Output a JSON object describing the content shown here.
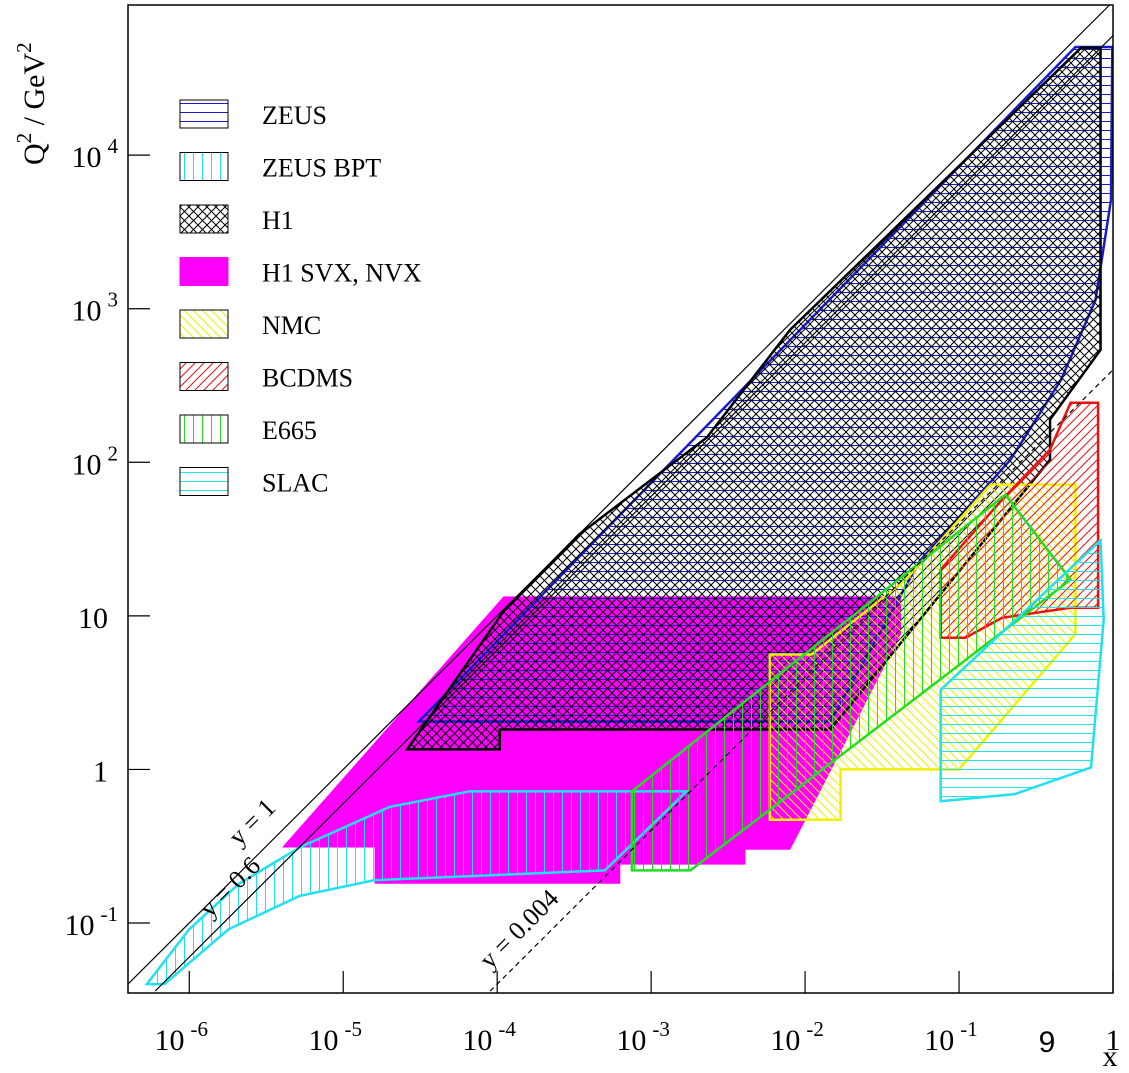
{
  "chart_data": {
    "type": "region",
    "xlabel": "x",
    "ylabel_parts": [
      "Q",
      "2",
      " / GeV",
      "2"
    ],
    "xlim": [
      4e-07,
      1
    ],
    "ylim": [
      0.035,
      95000
    ],
    "log_x": true,
    "log_y": true,
    "xticks": [
      {
        "value": 1e-06,
        "label": "10",
        "exponent": "-6"
      },
      {
        "value": 1e-05,
        "label": "10",
        "exponent": "-5"
      },
      {
        "value": 0.0001,
        "label": "10",
        "exponent": "-4"
      },
      {
        "value": 0.001,
        "label": "10",
        "exponent": "-3"
      },
      {
        "value": 0.01,
        "label": "10",
        "exponent": "-2"
      },
      {
        "value": 0.1,
        "label": "10",
        "exponent": "-1"
      },
      1
    ],
    "yticks": [
      {
        "value": 0.1,
        "label": "10",
        "exponent": "-1"
      },
      1,
      10,
      {
        "value": 100,
        "label": "10",
        "exponent": "2"
      },
      {
        "value": 1000,
        "label": "10",
        "exponent": "3"
      },
      {
        "value": 10000,
        "label": "10",
        "exponent": "4"
      }
    ],
    "annotation": "9",
    "series": [
      {
        "name": "ZEUS",
        "color": "#1a1acc",
        "pattern": "hlines",
        "x": [
          3.1e-05,
          0.57,
          0.99,
          0.97,
          0.77,
          0.46,
          0.216,
          0.056,
          0.0146
        ],
        "values": [
          2.05,
          50600,
          50600,
          5100,
          1140,
          345,
          104,
          23,
          2.05
        ]
      },
      {
        "name": "ZEUS BPT",
        "color": "#22e0ee",
        "pattern": "vlines",
        "x": [
          5.3e-07,
          1e-06,
          2.1e-06,
          5.2e-06,
          2e-05,
          6.6e-05,
          0.0017,
          0.0005,
          1.6e-05,
          5.2e-06,
          1.8e-06,
          6.9e-07
        ],
        "values": [
          0.04,
          0.091,
          0.18,
          0.31,
          0.57,
          0.72,
          0.72,
          0.22,
          0.19,
          0.15,
          0.091,
          0.04
        ]
      },
      {
        "name": "H1",
        "color": "#000000",
        "pattern": "crosshatch",
        "x": [
          2.6e-05,
          0.00011,
          0.00034,
          0.0023,
          0.008,
          0.62,
          0.83,
          0.83,
          0.39,
          0.39,
          0.0146,
          0.000104,
          0.000104
        ],
        "values": [
          1.35,
          10.7,
          33.8,
          145,
          730,
          50000,
          50000,
          540,
          190,
          104,
          1.82,
          1.82,
          1.35
        ]
      },
      {
        "name": "H1 SVX, NVX",
        "color": "#ff00ff",
        "pattern": "solid",
        "x": [
          4e-06,
          0.00011,
          0.042,
          0.042,
          0.008,
          0.0041,
          0.0041,
          0.00063,
          0.00063,
          1.6e-05,
          1.6e-05
        ],
        "values": [
          0.31,
          13.4,
          13.4,
          7.6,
          0.3,
          0.3,
          0.24,
          0.24,
          0.18,
          0.18,
          0.31
        ]
      },
      {
        "name": "NMC",
        "color": "#f0f000",
        "pattern": "diag-down",
        "x": [
          0.0059,
          0.0059,
          0.011,
          0.045,
          0.16,
          0.57,
          0.57,
          0.1,
          0.017,
          0.017
        ],
        "values": [
          0.47,
          5.6,
          5.6,
          17.2,
          71.5,
          71.5,
          7.6,
          1,
          1,
          0.47
        ]
      },
      {
        "name": "BCDMS",
        "color": "#ee1111",
        "pattern": "diag-up",
        "x": [
          0.076,
          0.076,
          0.19,
          0.39,
          0.53,
          0.8,
          0.8,
          0.53,
          0.19,
          0.11
        ],
        "values": [
          7.2,
          20,
          57,
          121,
          244,
          244,
          11.3,
          11.3,
          9.7,
          7.2
        ]
      },
      {
        "name": "E665",
        "color": "#22dd22",
        "pattern": "vlines",
        "x": [
          0.00075,
          0.00075,
          0.2,
          0.53,
          0.0018
        ],
        "values": [
          0.22,
          0.72,
          61.5,
          17.2,
          0.22
        ]
      },
      {
        "name": "SLAC",
        "color": "#22e0ee",
        "pattern": "hlines",
        "x": [
          0.076,
          0.076,
          0.83,
          0.87,
          0.72,
          0.23
        ],
        "values": [
          0.62,
          3.3,
          31,
          9.5,
          1.03,
          0.69
        ]
      }
    ],
    "lines": [
      {
        "label": "y = 1",
        "dash": false,
        "x": [
          4e-07,
          0.95
        ],
        "values": [
          0.04,
          95000
        ]
      },
      {
        "label": "y = 0.6",
        "dash": false,
        "x": [
          6e-07,
          1
        ],
        "values": [
          0.036,
          60000
        ]
      },
      {
        "label": "y = 0.004",
        "dash": true,
        "x": [
          9e-05,
          1
        ],
        "values": [
          0.036,
          400
        ]
      }
    ]
  }
}
